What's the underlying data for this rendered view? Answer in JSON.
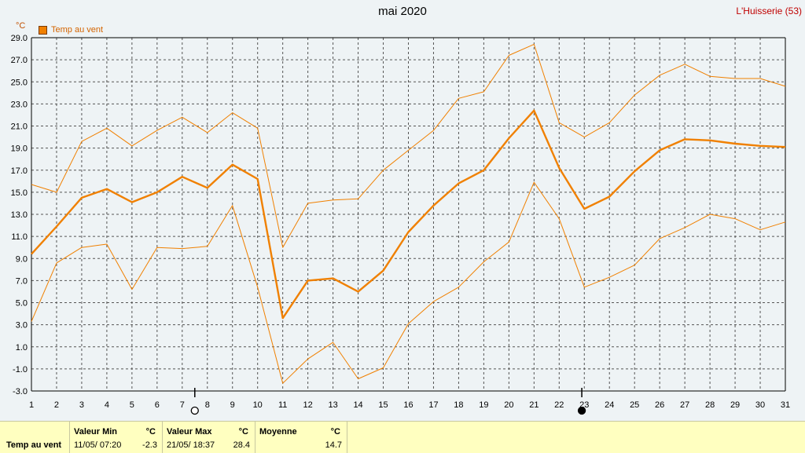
{
  "header": {
    "title": "mai 2020",
    "station": "L'Huisserie (53)",
    "unit": "°C"
  },
  "legend": {
    "label": "Temp au vent"
  },
  "colors": {
    "series": "#f08000",
    "background": "#eef3f5",
    "grid": "#404040",
    "footer": "#ffffc0"
  },
  "chart_data": {
    "type": "line",
    "title": "mai 2020",
    "xlabel": "",
    "ylabel": "°C",
    "x": [
      1,
      2,
      3,
      4,
      5,
      6,
      7,
      8,
      9,
      10,
      11,
      12,
      13,
      14,
      15,
      16,
      17,
      18,
      19,
      20,
      21,
      22,
      23,
      24,
      25,
      26,
      27,
      28,
      29,
      30,
      31
    ],
    "x_ticks": [
      "1",
      "2",
      "3",
      "4",
      "5",
      "6",
      "7",
      "8",
      "9",
      "10",
      "11",
      "12",
      "13",
      "14",
      "15",
      "16",
      "17",
      "18",
      "19",
      "20",
      "21",
      "22",
      "23",
      "24",
      "25",
      "26",
      "27",
      "28",
      "29",
      "30",
      "31"
    ],
    "y_ticks": [
      "29.0",
      "27.0",
      "25.0",
      "23.0",
      "21.0",
      "19.0",
      "17.0",
      "15.0",
      "13.0",
      "11.0",
      "9.0",
      "7.0",
      "5.0",
      "3.0",
      "1.0",
      "-1.0",
      "-3.0"
    ],
    "ylim": [
      -3,
      29
    ],
    "grid": true,
    "series": [
      {
        "name": "Temp au vent",
        "role": "max",
        "values": [
          15.7,
          15.0,
          19.6,
          20.8,
          19.2,
          20.6,
          21.8,
          20.4,
          22.2,
          20.8,
          10.0,
          14.0,
          14.3,
          14.4,
          17.0,
          18.8,
          20.6,
          23.5,
          24.1,
          27.4,
          28.4,
          21.3,
          20.0,
          21.3,
          23.8,
          25.6,
          26.6,
          25.5,
          25.3,
          25.3,
          24.6
        ]
      },
      {
        "name": "Temp au vent",
        "role": "mean",
        "values": [
          9.4,
          11.9,
          14.5,
          15.3,
          14.1,
          15.0,
          16.4,
          15.4,
          17.5,
          16.2,
          3.6,
          7.0,
          7.2,
          6.0,
          7.9,
          11.4,
          13.8,
          15.8,
          17.0,
          19.9,
          22.4,
          17.2,
          13.5,
          14.6,
          16.9,
          18.8,
          19.8,
          19.7,
          19.4,
          19.2,
          19.1
        ]
      },
      {
        "name": "Temp au vent",
        "role": "min",
        "values": [
          3.3,
          8.6,
          10.0,
          10.3,
          6.2,
          10.0,
          9.9,
          10.1,
          13.8,
          6.4,
          -2.3,
          -0.1,
          1.4,
          -1.9,
          -0.9,
          3.1,
          5.1,
          6.4,
          8.7,
          10.5,
          15.9,
          12.6,
          6.4,
          7.3,
          8.4,
          10.8,
          11.8,
          13.0,
          12.6,
          11.6,
          12.3
        ]
      }
    ],
    "moon_phases": [
      {
        "day": 7.5,
        "phase": "full"
      },
      {
        "day": 22.9,
        "phase": "new"
      }
    ]
  },
  "stats": {
    "row_label": "Temp au vent",
    "min": {
      "header": "Valeur Min",
      "unit": "°C",
      "date": "11/05/ 07:20",
      "value": "-2.3"
    },
    "max": {
      "header": "Valeur Max",
      "unit": "°C",
      "date": "21/05/ 18:37",
      "value": "28.4"
    },
    "mean": {
      "header": "Moyenne",
      "unit": "°C",
      "value": "14.7"
    }
  }
}
